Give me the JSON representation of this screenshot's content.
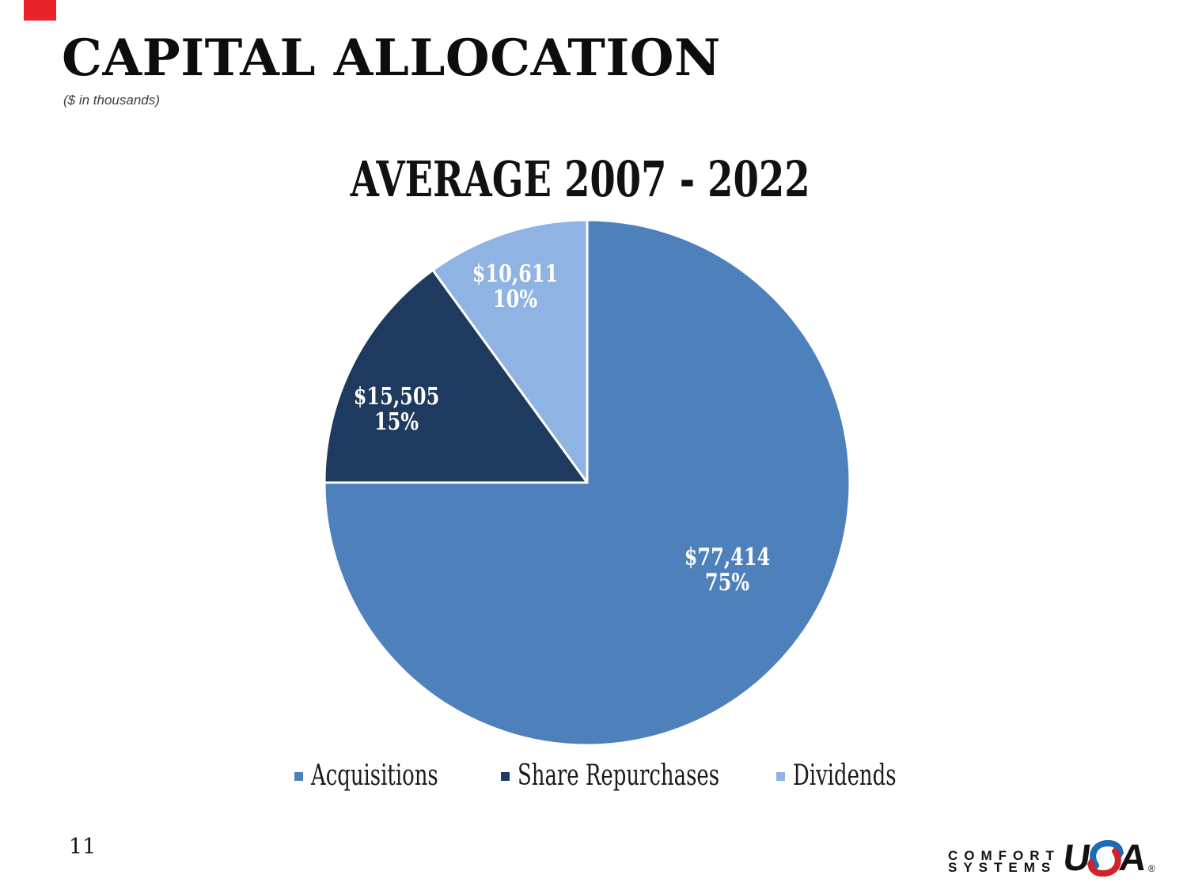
{
  "slide": {
    "page_number": "11",
    "heading": "CAPITAL ALLOCATION",
    "subheading": "($ in thousands)",
    "corner_marker_color": "#e8232a",
    "background_color": "#ffffff"
  },
  "chart_data": {
    "type": "pie",
    "title": "AVERAGE 2007 - 2022",
    "start_angle_deg": 0,
    "direction": "clockwise",
    "legend_position": "bottom",
    "label_text_color": "#ffffff",
    "slices": [
      {
        "label": "Acquisitions",
        "value": 77414,
        "percent": 75,
        "value_text": "$77,414",
        "percent_text": "75%",
        "color": "#4e80bc"
      },
      {
        "label": "Share Repurchases",
        "value": 15505,
        "percent": 15,
        "value_text": "$15,505",
        "percent_text": "15%",
        "color": "#1e3a5f"
      },
      {
        "label": "Dividends",
        "value": 10611,
        "percent": 10,
        "value_text": "$10,611",
        "percent_text": "10%",
        "color": "#8fb3e2"
      }
    ]
  },
  "logo": {
    "word1": "COMFORT",
    "word2": "SYSTEMS",
    "usa_u": "U",
    "usa_a": "A",
    "registered": "®",
    "blue": "#1c6bb5",
    "red": "#d2232a"
  }
}
